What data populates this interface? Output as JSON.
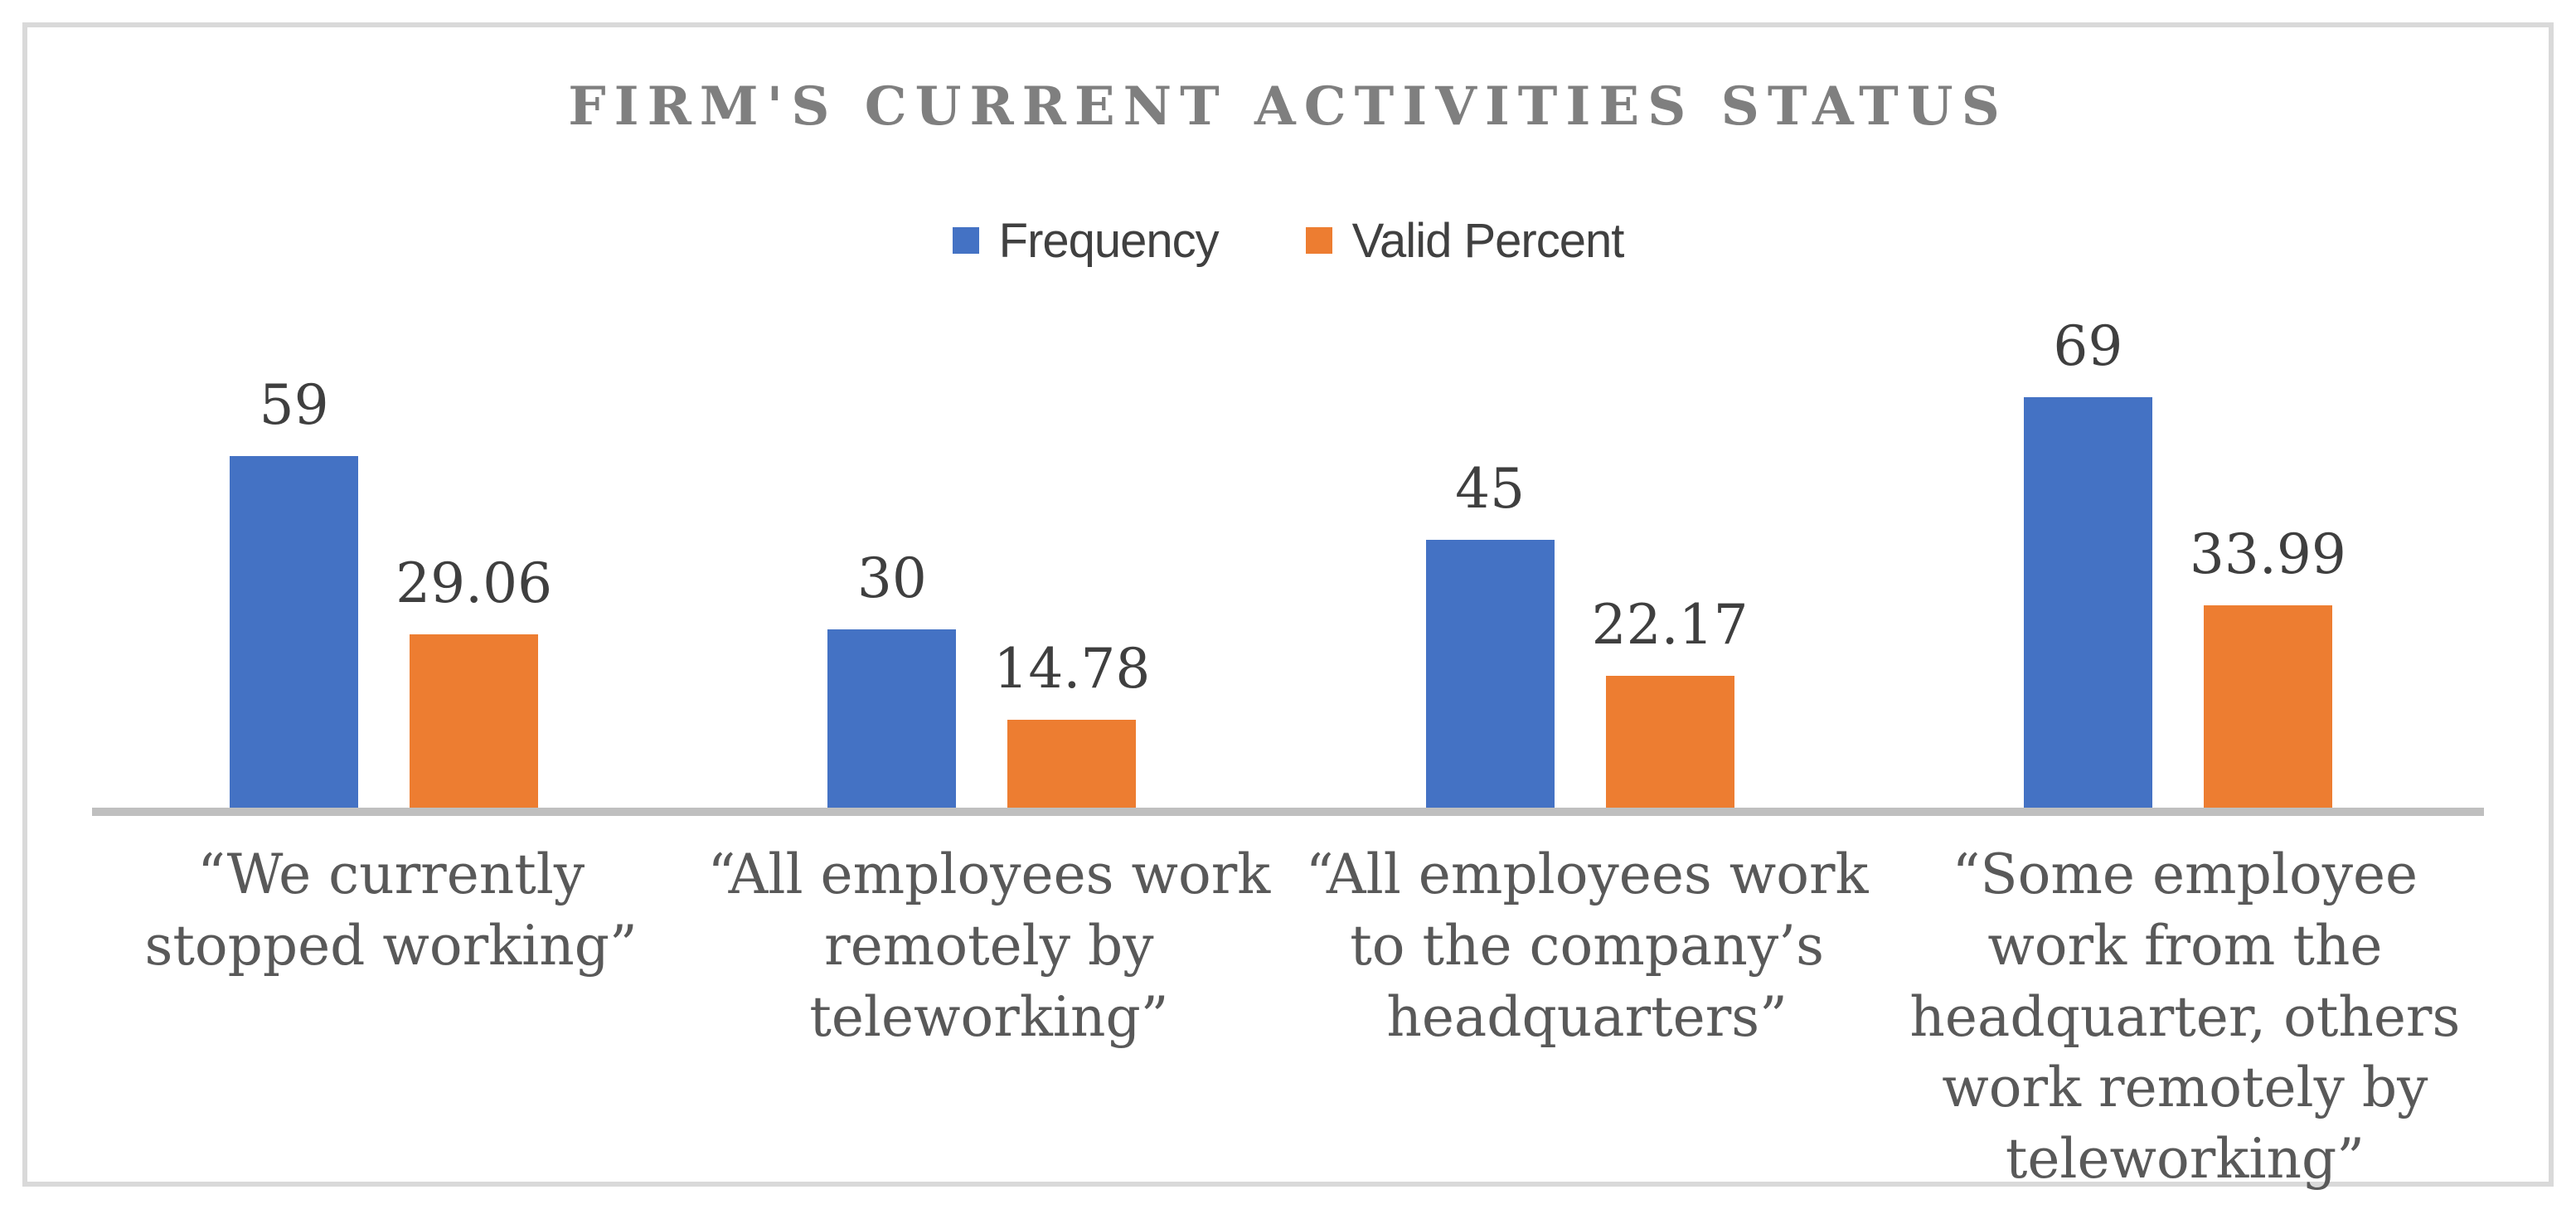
{
  "chart_data": {
    "type": "bar",
    "title": "FIRM'S CURRENT ACTIVITIES STATUS",
    "categories": [
      "“We currently stopped working”",
      "“All employees work remotely by teleworking”",
      "“All employees work to the company’s headquarters”",
      "“Some employee work from the headquarter, others work remotely by teleworking”"
    ],
    "series": [
      {
        "name": "Frequency",
        "color": "#4472C4",
        "values": [
          59,
          30,
          45,
          69
        ],
        "labels": [
          "59",
          "30",
          "45",
          "69"
        ]
      },
      {
        "name": "Valid Percent",
        "color": "#ED7D31",
        "values": [
          29.06,
          14.78,
          22.17,
          33.99
        ],
        "labels": [
          "29.06",
          "14.78",
          "22.17",
          "33.99"
        ]
      }
    ],
    "ylim": [
      0,
      78
    ],
    "xlabel": "",
    "ylabel": "",
    "grid": false,
    "y_axis_visible": false,
    "data_labels": true,
    "legend_position": "top",
    "style": {
      "title_color": "#7F7F7F",
      "legend_text_color": "#404040",
      "value_label_color": "#3F3F3F",
      "category_label_color": "#595959",
      "axis_line_color": "#BFBFBF",
      "frame_border_color": "#D9D9D9",
      "background_color": "#FFFFFF"
    }
  }
}
